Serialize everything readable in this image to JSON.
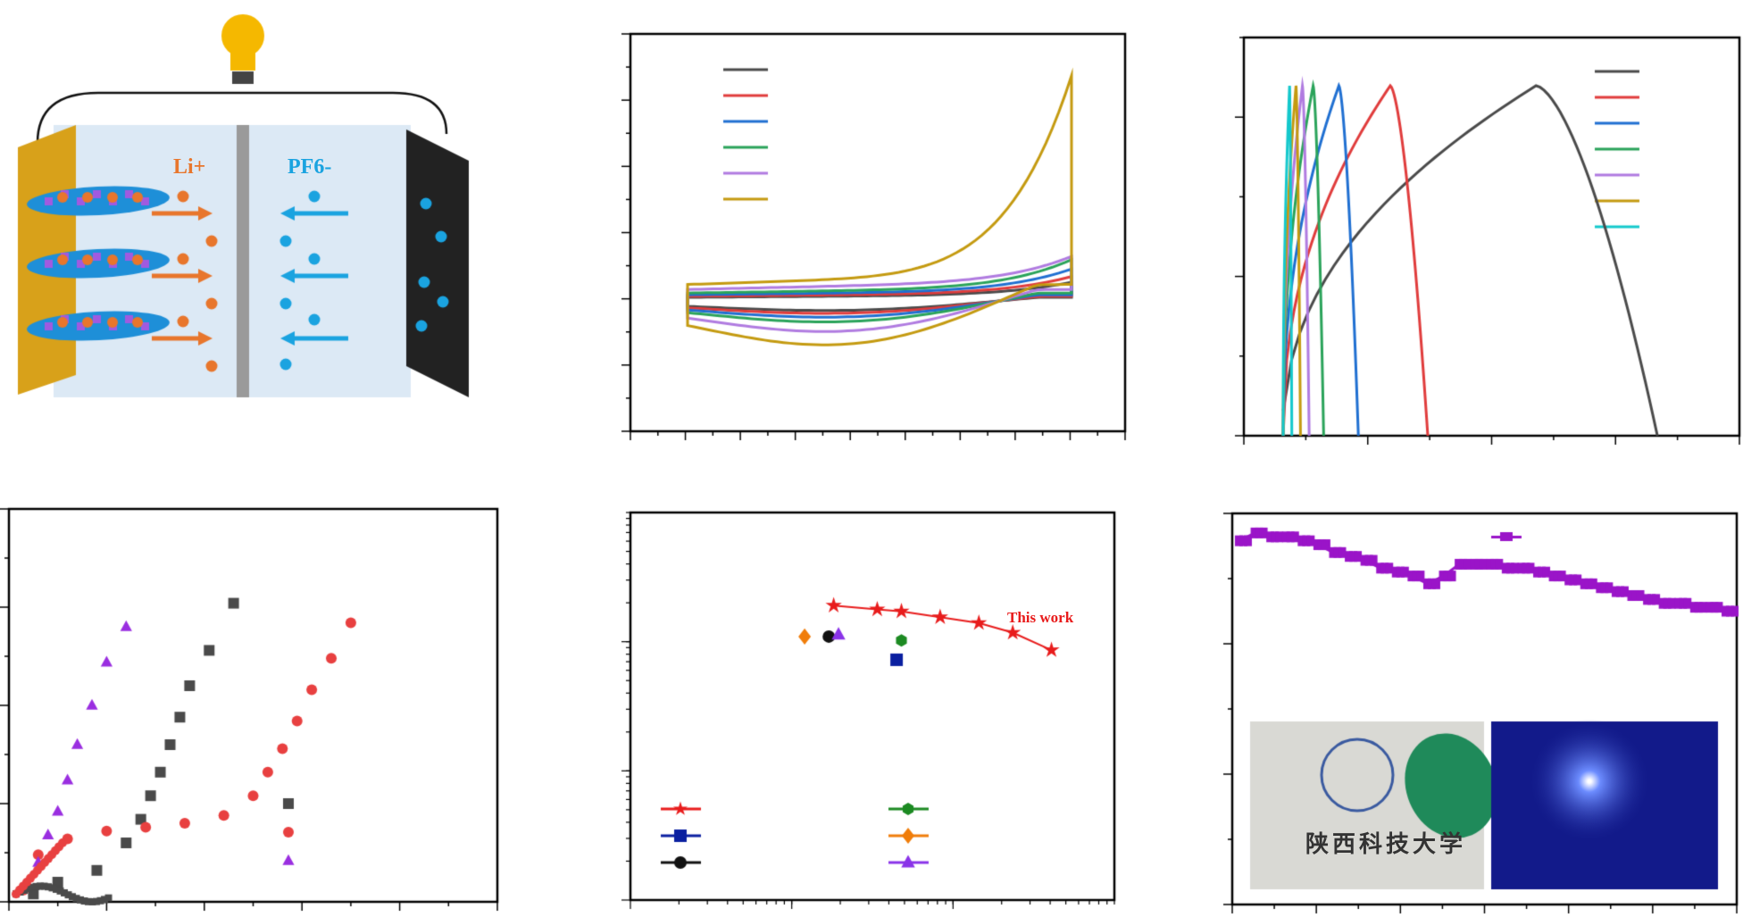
{
  "schematic": {
    "cation": "Li+",
    "anion": "PF6-",
    "colors": {
      "cation": "#e8762c",
      "anion": "#1aa3e0",
      "electrolyte": "#dce9f5",
      "left_electrode": "#d8a11a",
      "right_electrode": "#222222",
      "separator": "#9a9a9a",
      "bulb": "#f5b800"
    }
  },
  "chart_data": [
    {
      "type": "line",
      "id": "cv",
      "axis_labels": false,
      "series_colors": [
        "#4a4a4a",
        "#e03c3c",
        "#1f6fd1",
        "#2aa35a",
        "#b07be0",
        "#c49a10"
      ],
      "series_relative_amplitude": [
        1,
        1.3,
        1.7,
        2.2,
        3.2,
        4.6
      ],
      "x_range": [
        0,
        1
      ],
      "y_range": [
        -1,
        1
      ]
    },
    {
      "type": "line",
      "id": "gcd",
      "axis_labels": false,
      "series_colors": [
        "#4a4a4a",
        "#e03c3c",
        "#1f6fd1",
        "#2aa35a",
        "#b07be0",
        "#c49a10",
        "#14c8cc"
      ],
      "series_peak_time_fraction": [
        0.59,
        0.25,
        0.13,
        0.07,
        0.045,
        0.03,
        0.015
      ],
      "y_range": [
        0,
        1
      ]
    },
    {
      "type": "scatter",
      "id": "nyquist",
      "axis_labels": false,
      "series": [
        {
          "marker": "square",
          "color": "#4a4a4a",
          "points": [
            [
              0.05,
              0.02
            ],
            [
              0.1,
              0.05
            ],
            [
              0.18,
              0.08
            ],
            [
              0.24,
              0.15
            ],
            [
              0.27,
              0.21
            ],
            [
              0.29,
              0.27
            ],
            [
              0.31,
              0.33
            ],
            [
              0.33,
              0.4
            ],
            [
              0.35,
              0.47
            ],
            [
              0.37,
              0.55
            ],
            [
              0.41,
              0.64
            ],
            [
              0.46,
              0.76
            ]
          ]
        },
        {
          "marker": "circle",
          "color": "#e84040",
          "points": [
            [
              0.03,
              0.03
            ],
            [
              0.06,
              0.12
            ],
            [
              0.12,
              0.16
            ],
            [
              0.2,
              0.18
            ],
            [
              0.28,
              0.19
            ],
            [
              0.36,
              0.2
            ],
            [
              0.44,
              0.22
            ],
            [
              0.5,
              0.27
            ],
            [
              0.53,
              0.33
            ],
            [
              0.56,
              0.39
            ],
            [
              0.59,
              0.46
            ],
            [
              0.62,
              0.54
            ],
            [
              0.66,
              0.62
            ],
            [
              0.7,
              0.71
            ]
          ]
        },
        {
          "marker": "triangle",
          "color": "#9a2ee0",
          "points": [
            [
              0.03,
              0.04
            ],
            [
              0.06,
              0.1
            ],
            [
              0.08,
              0.17
            ],
            [
              0.1,
              0.23
            ],
            [
              0.12,
              0.31
            ],
            [
              0.14,
              0.4
            ],
            [
              0.17,
              0.5
            ],
            [
              0.2,
              0.61
            ],
            [
              0.24,
              0.7
            ]
          ]
        }
      ]
    },
    {
      "type": "scatter",
      "id": "ragone",
      "axis_labels": false,
      "x_scale": "log",
      "y_scale": "log",
      "annotation": "This work",
      "this_work": {
        "color": "#e81c1c",
        "points": [
          [
            0.42,
            0.76
          ],
          [
            0.51,
            0.75
          ],
          [
            0.56,
            0.745
          ],
          [
            0.64,
            0.73
          ],
          [
            0.72,
            0.715
          ],
          [
            0.79,
            0.69
          ],
          [
            0.87,
            0.645
          ]
        ]
      },
      "others": [
        {
          "marker": "diamond",
          "color": "#f07d0a",
          "point": [
            0.36,
            0.68
          ]
        },
        {
          "marker": "circle",
          "color": "#111111",
          "point": [
            0.41,
            0.68
          ]
        },
        {
          "marker": "triangle",
          "color": "#8a33e8",
          "point": [
            0.43,
            0.685
          ]
        },
        {
          "marker": "hexagon",
          "color": "#1c8a22",
          "point": [
            0.56,
            0.67
          ]
        },
        {
          "marker": "square",
          "color": "#0a1fa0",
          "point": [
            0.55,
            0.62
          ]
        }
      ],
      "legend_left": [
        "star",
        "square",
        "circle"
      ],
      "legend_right": [
        "hexagon",
        "diamond",
        "triangle"
      ]
    },
    {
      "type": "line",
      "id": "flexibility",
      "axis_labels": false,
      "color": "#9a14c8",
      "values": [
        0.93,
        0.95,
        0.94,
        0.94,
        0.93,
        0.92,
        0.9,
        0.89,
        0.88,
        0.86,
        0.85,
        0.84,
        0.82,
        0.84,
        0.87,
        0.87,
        0.87,
        0.86,
        0.86,
        0.85,
        0.84,
        0.83,
        0.82,
        0.81,
        0.8,
        0.79,
        0.78,
        0.77,
        0.77,
        0.76,
        0.76,
        0.75
      ]
    }
  ],
  "photos": {
    "left_caption": "陕西科技大学",
    "left_bg": "#d9d9d4",
    "right_bg": "#121a8a"
  }
}
